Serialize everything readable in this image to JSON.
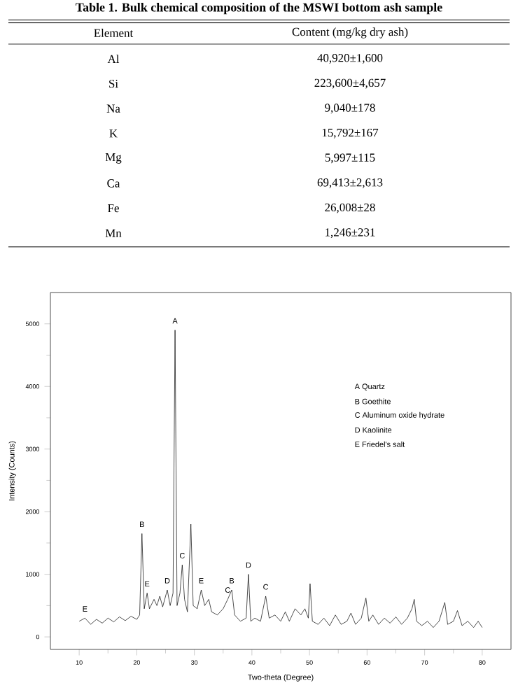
{
  "chart_data": [
    {
      "type": "other",
      "title": "Table 1. Bulk chemical composition of the MSWI bottom ash sample",
      "categories": [
        "Element",
        "Content (mg/kg dry ash)"
      ],
      "cell_labels": [
        [
          "Al",
          "40,920±1,600"
        ],
        [
          "Si",
          "223,600±4,657"
        ],
        [
          "Na",
          "9,040±178"
        ],
        [
          "K",
          "15,792±167"
        ],
        [
          "Mg",
          "5,997±115"
        ],
        [
          "Ca",
          "69,413±2,613"
        ],
        [
          "Fe",
          "26,008±28"
        ],
        [
          "Mn",
          "1,246±231"
        ]
      ]
    },
    {
      "type": "line",
      "xlabel": "Two-theta (Degree)",
      "ylabel": "Intensity (Counts)",
      "xlim": [
        5,
        85
      ],
      "ylim": [
        -200,
        5500
      ],
      "xticks": [
        10,
        20,
        30,
        40,
        50,
        60,
        70,
        80
      ],
      "yticks": [
        0,
        1000,
        2000,
        3000,
        4000,
        5000
      ],
      "series": [
        {
          "color": "#000000",
          "x": [
            10,
            11,
            12,
            13,
            14,
            15,
            16,
            17,
            18,
            19,
            20,
            20.5,
            20.9,
            21.3,
            21.8,
            22.2,
            23,
            23.5,
            24,
            24.5,
            25.3,
            25.8,
            26.3,
            26.65,
            27,
            27.5,
            27.9,
            28.3,
            28.8,
            29.4,
            29.8,
            30.5,
            31.2,
            31.8,
            32.5,
            33,
            34,
            35,
            35.8,
            36.5,
            37,
            38,
            39,
            39.4,
            39.8,
            40.5,
            41.5,
            42.4,
            43,
            44,
            45,
            45.8,
            46.5,
            47.5,
            48.5,
            49.2,
            49.8,
            50.1,
            50.5,
            51.5,
            52.5,
            53.5,
            54.5,
            55.5,
            56.5,
            57.2,
            58,
            59,
            59.8,
            60.3,
            61,
            62,
            63,
            64,
            65,
            66,
            67,
            67.8,
            68.2,
            68.6,
            69.5,
            70.5,
            71.5,
            72.5,
            73.5,
            74,
            75,
            75.7,
            76.5,
            77.5,
            78.5,
            79.3,
            80
          ],
          "values": [
            250,
            300,
            200,
            280,
            220,
            300,
            240,
            320,
            260,
            330,
            280,
            350,
            1650,
            450,
            700,
            450,
            600,
            500,
            650,
            480,
            750,
            500,
            700,
            4900,
            500,
            700,
            1150,
            600,
            400,
            1800,
            500,
            450,
            750,
            500,
            600,
            400,
            350,
            450,
            600,
            750,
            350,
            250,
            300,
            1000,
            250,
            300,
            250,
            650,
            300,
            350,
            250,
            400,
            250,
            450,
            350,
            450,
            300,
            850,
            250,
            200,
            300,
            180,
            350,
            200,
            250,
            380,
            200,
            300,
            620,
            250,
            350,
            200,
            300,
            220,
            320,
            200,
            300,
            450,
            600,
            250,
            180,
            250,
            150,
            250,
            550,
            200,
            250,
            420,
            180,
            250,
            150,
            250,
            150
          ]
        }
      ],
      "annotations": [
        {
          "text": "A",
          "x": 26.65,
          "y": 4900
        },
        {
          "text": "B",
          "x": 20.9,
          "y": 1650
        },
        {
          "text": "E",
          "x": 21.8,
          "y": 700
        },
        {
          "text": "D",
          "x": 25.3,
          "y": 750
        },
        {
          "text": "C",
          "x": 27.9,
          "y": 1150
        },
        {
          "text": "E",
          "x": 31.2,
          "y": 750
        },
        {
          "text": "C",
          "x": 35.8,
          "y": 600
        },
        {
          "text": "B",
          "x": 36.5,
          "y": 750
        },
        {
          "text": "D",
          "x": 39.4,
          "y": 1000
        },
        {
          "text": "C",
          "x": 42.4,
          "y": 650
        },
        {
          "text": "E",
          "x": 11,
          "y": 300
        },
        "A Quartz",
        "B Goethite",
        "C Aluminum oxide hydrate",
        "D Kaolinite",
        "E Friedel's salt"
      ]
    }
  ]
}
